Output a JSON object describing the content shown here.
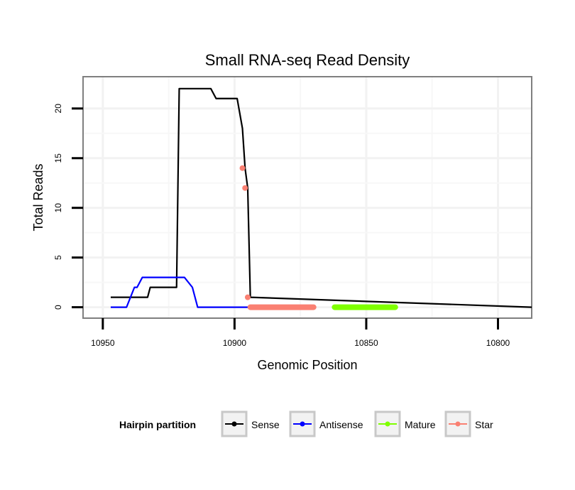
{
  "chart_data": {
    "type": "line",
    "title": "Small RNA-seq Read Density",
    "xlabel": "Genomic Position",
    "ylabel": "Total Reads",
    "xlim": [
      10957.5,
      10787.2
    ],
    "x_reversed": true,
    "ylim": [
      -1.1,
      23.2
    ],
    "x_ticks": [
      10950,
      10900,
      10850,
      10800
    ],
    "x_tick_labels": [
      "10950",
      "10900",
      "10850",
      "10800"
    ],
    "y_ticks": [
      0,
      5,
      10,
      15,
      20
    ],
    "y_tick_labels": [
      "0",
      "5",
      "10",
      "15",
      "20"
    ],
    "grid": true,
    "legend": {
      "title": "Hairpin partition",
      "position": "bottom",
      "entries": [
        {
          "name": "Sense",
          "color": "#000000"
        },
        {
          "name": "Antisense",
          "color": "#0000ff"
        },
        {
          "name": "Mature",
          "color": "#7fff00"
        },
        {
          "name": "Star",
          "color": "#fa8072"
        }
      ]
    },
    "series": [
      {
        "name": "Sense",
        "color": "#000000",
        "kind": "line",
        "x": [
          10947,
          10933,
          10932,
          10922,
          10921,
          10909,
          10907,
          10899,
          10897,
          10896,
          10895,
          10894,
          10787.2
        ],
        "y": [
          1,
          1,
          2,
          2,
          22,
          22,
          21,
          21,
          18,
          14,
          12,
          1,
          0
        ]
      },
      {
        "name": "Antisense",
        "color": "#0000ff",
        "kind": "line",
        "x": [
          10947,
          10941,
          10938,
          10937,
          10935,
          10921,
          10919,
          10916,
          10914,
          10894
        ],
        "y": [
          0,
          0,
          2,
          2,
          3,
          3,
          3,
          2,
          0,
          0
        ]
      },
      {
        "name": "Star",
        "color": "#fa8072",
        "kind": "points+band",
        "points_x": [
          10897,
          10896,
          10895
        ],
        "points_y": [
          14,
          12,
          1
        ],
        "band_x": [
          10894,
          10870
        ],
        "band_y": 0
      },
      {
        "name": "Mature",
        "color": "#7fff00",
        "kind": "band",
        "band_x": [
          10862,
          10839
        ],
        "band_y": 0
      }
    ]
  }
}
